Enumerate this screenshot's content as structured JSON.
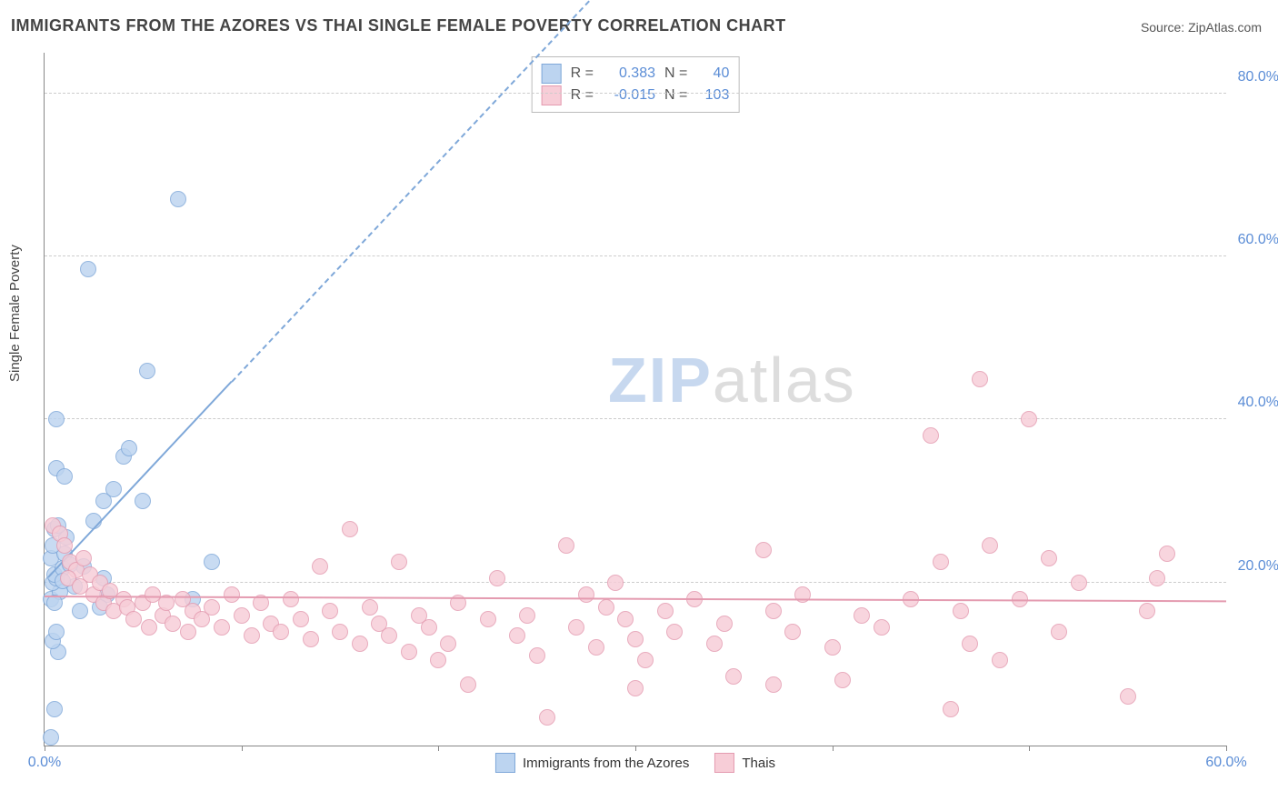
{
  "title": "IMMIGRANTS FROM THE AZORES VS THAI SINGLE FEMALE POVERTY CORRELATION CHART",
  "source": "Source: ZipAtlas.com",
  "ylabel": "Single Female Poverty",
  "watermark": {
    "a": "ZIP",
    "b": "atlas"
  },
  "chart": {
    "type": "scatter",
    "xlim": [
      0,
      60
    ],
    "ylim": [
      0,
      85
    ],
    "ytick_values": [
      20,
      40,
      60,
      80
    ],
    "ytick_labels": [
      "20.0%",
      "40.0%",
      "60.0%",
      "80.0%"
    ],
    "xtick_values": [
      0,
      10,
      20,
      30,
      40,
      50,
      60
    ],
    "xtick_labels": {
      "0": "0.0%",
      "60": "60.0%"
    },
    "background_color": "#ffffff",
    "grid_color": "#cccccc",
    "axis_color": "#888888",
    "tick_label_color": "#5b8dd6",
    "marker_radius": 9,
    "series": [
      {
        "id": "azores",
        "label": "Immigrants from the Azores",
        "fill": "#bcd4f0",
        "stroke": "#7fa8d9",
        "R": "0.383",
        "N": "40",
        "trend": {
          "x1": 0.2,
          "y1": 20.5,
          "x2": 9.5,
          "y2": 44.5,
          "solid_until_x": 9.5,
          "dashed_to_x": 33,
          "dashed_to_y": 105
        },
        "points": [
          [
            0.3,
            1.0
          ],
          [
            0.5,
            4.5
          ],
          [
            0.7,
            11.5
          ],
          [
            0.4,
            12.8
          ],
          [
            0.6,
            14.0
          ],
          [
            0.3,
            18.0
          ],
          [
            0.8,
            18.8
          ],
          [
            0.4,
            20.0
          ],
          [
            0.6,
            20.5
          ],
          [
            0.5,
            21.0
          ],
          [
            0.9,
            21.8
          ],
          [
            0.3,
            23.0
          ],
          [
            1.0,
            23.5
          ],
          [
            0.4,
            24.5
          ],
          [
            1.1,
            25.5
          ],
          [
            0.5,
            26.5
          ],
          [
            0.7,
            27.0
          ],
          [
            2.0,
            22.0
          ],
          [
            2.5,
            27.5
          ],
          [
            3.2,
            18.5
          ],
          [
            3.0,
            30.0
          ],
          [
            3.5,
            31.5
          ],
          [
            0.6,
            34.0
          ],
          [
            1.0,
            33.0
          ],
          [
            4.0,
            35.5
          ],
          [
            4.3,
            36.5
          ],
          [
            0.6,
            40.0
          ],
          [
            5.0,
            30.0
          ],
          [
            5.2,
            46.0
          ],
          [
            7.5,
            18.0
          ],
          [
            2.2,
            58.5
          ],
          [
            6.8,
            67.0
          ],
          [
            8.5,
            22.5
          ],
          [
            3.0,
            20.5
          ],
          [
            1.5,
            19.5
          ],
          [
            1.8,
            16.5
          ],
          [
            2.8,
            17.0
          ],
          [
            0.9,
            20.2
          ],
          [
            1.3,
            22.2
          ],
          [
            0.5,
            17.5
          ]
        ]
      },
      {
        "id": "thais",
        "label": "Thais",
        "fill": "#f7cdd7",
        "stroke": "#e49bb0",
        "R": "-0.015",
        "N": "103",
        "trend": {
          "x1": 0,
          "y1": 18.2,
          "x2": 60,
          "y2": 17.6
        },
        "points": [
          [
            0.4,
            27.0
          ],
          [
            0.8,
            26.0
          ],
          [
            1.0,
            24.5
          ],
          [
            1.3,
            22.5
          ],
          [
            1.6,
            21.5
          ],
          [
            1.2,
            20.5
          ],
          [
            1.8,
            19.5
          ],
          [
            2.0,
            23.0
          ],
          [
            2.3,
            21.0
          ],
          [
            2.5,
            18.5
          ],
          [
            2.8,
            20.0
          ],
          [
            3.0,
            17.5
          ],
          [
            3.3,
            19.0
          ],
          [
            3.5,
            16.5
          ],
          [
            4.0,
            18.0
          ],
          [
            4.2,
            17.0
          ],
          [
            4.5,
            15.5
          ],
          [
            5.0,
            17.5
          ],
          [
            5.3,
            14.5
          ],
          [
            5.5,
            18.5
          ],
          [
            6.0,
            16.0
          ],
          [
            6.2,
            17.5
          ],
          [
            6.5,
            15.0
          ],
          [
            7.0,
            18.0
          ],
          [
            7.3,
            14.0
          ],
          [
            7.5,
            16.5
          ],
          [
            8.0,
            15.5
          ],
          [
            8.5,
            17.0
          ],
          [
            9.0,
            14.5
          ],
          [
            9.5,
            18.5
          ],
          [
            10.0,
            16.0
          ],
          [
            10.5,
            13.5
          ],
          [
            11.0,
            17.5
          ],
          [
            11.5,
            15.0
          ],
          [
            12.0,
            14.0
          ],
          [
            12.5,
            18.0
          ],
          [
            13.0,
            15.5
          ],
          [
            13.5,
            13.0
          ],
          [
            14.0,
            22.0
          ],
          [
            14.5,
            16.5
          ],
          [
            15.0,
            14.0
          ],
          [
            15.5,
            26.5
          ],
          [
            16.0,
            12.5
          ],
          [
            16.5,
            17.0
          ],
          [
            17.0,
            15.0
          ],
          [
            17.5,
            13.5
          ],
          [
            18.0,
            22.5
          ],
          [
            18.5,
            11.5
          ],
          [
            19.0,
            16.0
          ],
          [
            19.5,
            14.5
          ],
          [
            20.0,
            10.5
          ],
          [
            20.5,
            12.5
          ],
          [
            21.0,
            17.5
          ],
          [
            21.5,
            7.5
          ],
          [
            22.5,
            15.5
          ],
          [
            23.0,
            20.5
          ],
          [
            24.0,
            13.5
          ],
          [
            24.5,
            16.0
          ],
          [
            25.0,
            11.0
          ],
          [
            25.5,
            3.5
          ],
          [
            26.5,
            24.5
          ],
          [
            27.0,
            14.5
          ],
          [
            27.5,
            18.5
          ],
          [
            28.0,
            12.0
          ],
          [
            28.5,
            17.0
          ],
          [
            29.0,
            20.0
          ],
          [
            29.5,
            15.5
          ],
          [
            30.0,
            13.0
          ],
          [
            30.5,
            10.5
          ],
          [
            31.5,
            16.5
          ],
          [
            32.0,
            14.0
          ],
          [
            33.0,
            18.0
          ],
          [
            34.0,
            12.5
          ],
          [
            34.5,
            15.0
          ],
          [
            35.0,
            8.5
          ],
          [
            36.5,
            24.0
          ],
          [
            37.0,
            16.5
          ],
          [
            38.0,
            14.0
          ],
          [
            38.5,
            18.5
          ],
          [
            40.0,
            12.0
          ],
          [
            40.5,
            8.0
          ],
          [
            41.5,
            16.0
          ],
          [
            42.5,
            14.5
          ],
          [
            44.0,
            18.0
          ],
          [
            45.0,
            38.0
          ],
          [
            45.5,
            22.5
          ],
          [
            46.0,
            4.5
          ],
          [
            46.5,
            16.5
          ],
          [
            47.0,
            12.5
          ],
          [
            47.5,
            45.0
          ],
          [
            48.0,
            24.5
          ],
          [
            48.5,
            10.5
          ],
          [
            49.5,
            18.0
          ],
          [
            50.0,
            40.0
          ],
          [
            51.0,
            23.0
          ],
          [
            51.5,
            14.0
          ],
          [
            52.5,
            20.0
          ],
          [
            55.0,
            6.0
          ],
          [
            56.0,
            16.5
          ],
          [
            56.5,
            20.5
          ],
          [
            57.0,
            23.5
          ],
          [
            37.0,
            7.5
          ],
          [
            30.0,
            7.0
          ]
        ]
      }
    ]
  },
  "legend_top_labels": {
    "R": "R =",
    "N": "N ="
  }
}
